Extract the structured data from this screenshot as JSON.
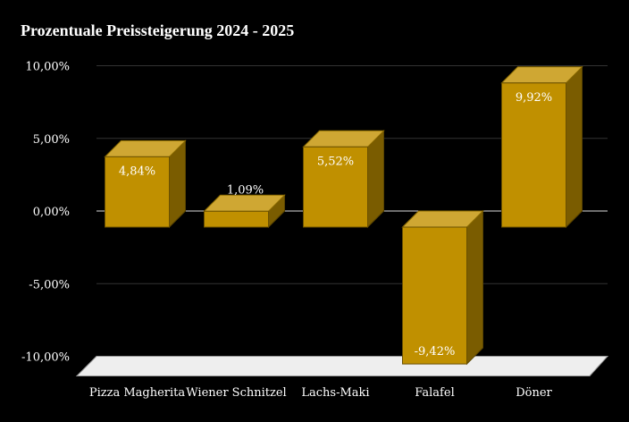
{
  "chart_data": {
    "type": "bar",
    "title": "Prozentuale Preissteigerung 2024 - 2025",
    "categories": [
      "Pizza Magherita",
      "Wiener Schnitzel",
      "Lachs-Maki",
      "Falafel",
      "Döner"
    ],
    "values": [
      4.84,
      1.09,
      5.52,
      -9.42,
      9.92
    ],
    "data_labels": [
      "4,84%",
      "1,09%",
      "5,52%",
      "-9,42%",
      "9,92%"
    ],
    "ylim": [
      -10,
      10
    ],
    "yticks": [
      10,
      5,
      0,
      -5,
      -10
    ],
    "ytick_labels": [
      "10,00%",
      "5,00%",
      "0,00%",
      "-5,00%",
      "-10,00%"
    ],
    "xlabel": "",
    "ylabel": "",
    "grid": true,
    "style": "3d",
    "colors": {
      "bar_front": "#c09000",
      "bar_top": "#cfa733",
      "bar_side": "#7a5c00",
      "floor": "#eeeeee",
      "background": "#000000",
      "text": "#ffffff"
    }
  }
}
